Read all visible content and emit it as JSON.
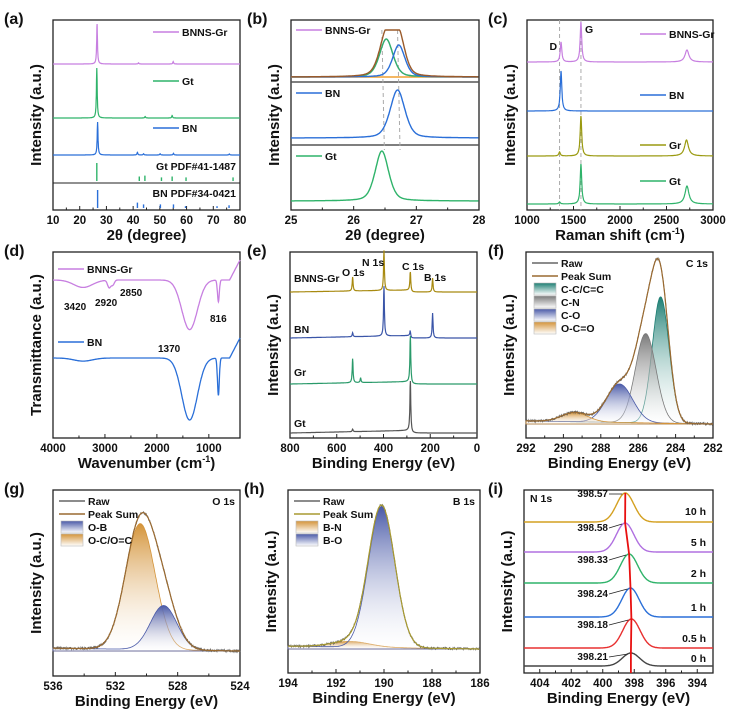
{
  "chart_data": [
    {
      "panel": "(a)",
      "type": "line",
      "xlabel": "2θ (degree)",
      "ylabel": "Intensity (a.u.)",
      "xlim": [
        10,
        80
      ],
      "xticks": [
        10,
        20,
        30,
        40,
        50,
        60,
        70,
        80
      ],
      "series": [
        {
          "name": "BNNS-Gr",
          "color": "#c77fe0",
          "peaks": [
            [
              26.5,
              1.0
            ],
            [
              42,
              0.03
            ],
            [
              55,
              0.06
            ]
          ]
        },
        {
          "name": "Gt",
          "color": "#2fb36a",
          "peaks": [
            [
              26.4,
              1.0
            ],
            [
              44.5,
              0.03
            ],
            [
              54.6,
              0.05
            ]
          ]
        },
        {
          "name": "BN",
          "color": "#2a6fd8",
          "peaks": [
            [
              26.7,
              1.0
            ],
            [
              41.6,
              0.08
            ],
            [
              43.9,
              0.04
            ],
            [
              50.1,
              0.04
            ],
            [
              55.1,
              0.05
            ],
            [
              76,
              0.03
            ]
          ]
        }
      ],
      "references": [
        {
          "name": "Gt PDF#41-1487",
          "color": "#2fb36a",
          "lines": [
            [
              26.4,
              1.0
            ],
            [
              42.3,
              0.25
            ],
            [
              44.4,
              0.3
            ],
            [
              50.6,
              0.2
            ],
            [
              54.6,
              0.25
            ],
            [
              59.8,
              0.2
            ],
            [
              77.4,
              0.2
            ]
          ]
        },
        {
          "name": "BN PDF#34-0421",
          "color": "#2a6fd8",
          "lines": [
            [
              26.7,
              1.0
            ],
            [
              41.6,
              0.3
            ],
            [
              43.9,
              0.2
            ],
            [
              50.2,
              0.2
            ],
            [
              55.1,
              0.2
            ],
            [
              59.6,
              0.1
            ],
            [
              71.4,
              0.1
            ],
            [
              75.9,
              0.15
            ]
          ]
        }
      ]
    },
    {
      "panel": "(b)",
      "type": "line",
      "xlabel": "2θ (degree)",
      "ylabel": "Intensity (a.u.)",
      "xlim": [
        25,
        28
      ],
      "xticks": [
        25,
        26,
        27,
        28
      ],
      "vlines": [
        26.45,
        26.7
      ],
      "series": [
        {
          "name": "BNNS-Gr",
          "color": "#c77fe0"
        },
        {
          "name": "BN",
          "color": "#2a6fd8",
          "peak": 26.7
        },
        {
          "name": "Gt",
          "color": "#2fb36a",
          "peak": 26.45
        }
      ],
      "fit_components": [
        {
          "color": "#2fb36a",
          "center": 26.52
        },
        {
          "color": "#2a6fd8",
          "center": 26.72
        },
        {
          "color": "#9a5a2a",
          "role": "envelope"
        },
        {
          "color": "#f0a030",
          "role": "baseline"
        }
      ]
    },
    {
      "panel": "(c)",
      "type": "line",
      "xlabel": "Raman shift (cm-1)",
      "ylabel": "Intensity (a.u.)",
      "xlim": [
        1000,
        3000
      ],
      "xticks": [
        1000,
        1500,
        2000,
        2500,
        3000
      ],
      "annotations": [
        {
          "text": "D",
          "x": 1350
        },
        {
          "text": "G",
          "x": 1580
        }
      ],
      "series": [
        {
          "name": "BNNS-Gr",
          "color": "#c77fe0",
          "peaks": [
            [
              1366,
              0.5
            ],
            [
              1580,
              1.0
            ],
            [
              2720,
              0.3
            ]
          ]
        },
        {
          "name": "BN",
          "color": "#2a6fd8",
          "peaks": [
            [
              1366,
              1.0
            ]
          ]
        },
        {
          "name": "Gr",
          "color": "#9a9a10",
          "peaks": [
            [
              1350,
              0.1
            ],
            [
              1580,
              1.0
            ],
            [
              2715,
              0.4
            ]
          ]
        },
        {
          "name": "Gt",
          "color": "#2fb36a",
          "peaks": [
            [
              1350,
              0.05
            ],
            [
              1580,
              1.0
            ],
            [
              2720,
              0.45
            ]
          ]
        }
      ]
    },
    {
      "panel": "(d)",
      "type": "line",
      "xlabel": "Wavenumber (cm-1)",
      "ylabel": "Transmittance (a.u.)",
      "xlim": [
        4000,
        400
      ],
      "xticks": [
        4000,
        3000,
        2000,
        1000
      ],
      "annotations": [
        "3420",
        "2920",
        "2850",
        "1370",
        "816"
      ],
      "series": [
        {
          "name": "BNNS-Gr",
          "color": "#c77fe0",
          "dips": [
            [
              3420,
              0.12
            ],
            [
              2920,
              0.12
            ],
            [
              2850,
              0.08
            ],
            [
              1370,
              0.8
            ],
            [
              816,
              0.35
            ]
          ]
        },
        {
          "name": "BN",
          "color": "#2a6fd8",
          "dips": [
            [
              3420,
              0.05
            ],
            [
              1370,
              1.0
            ],
            [
              816,
              0.6
            ]
          ]
        }
      ]
    },
    {
      "panel": "(e)",
      "type": "line",
      "xlabel": "Binding Energy (eV)",
      "ylabel": "Intensity (a.u.)",
      "xlim": [
        800,
        0
      ],
      "xticks": [
        800,
        600,
        400,
        200,
        0
      ],
      "annotations": [
        "O 1s",
        "N 1s",
        "C 1s",
        "B 1s"
      ],
      "series": [
        {
          "name": "BNNS-Gr",
          "color": "#a88a10",
          "peaks": [
            [
              532,
              0.35
            ],
            [
              398,
              1.0
            ],
            [
              285,
              0.5
            ],
            [
              190,
              0.35
            ]
          ]
        },
        {
          "name": "BN",
          "color": "#3a55a8",
          "peaks": [
            [
              532,
              0.08
            ],
            [
              398,
              1.0
            ],
            [
              285,
              0.12
            ],
            [
              190,
              0.5
            ]
          ]
        },
        {
          "name": "Gr",
          "color": "#2a9a6a",
          "peaks": [
            [
              532,
              0.5
            ],
            [
              498,
              0.1
            ],
            [
              285,
              1.0
            ]
          ]
        },
        {
          "name": "Gt",
          "color": "#555555",
          "peaks": [
            [
              532,
              0.05
            ],
            [
              285,
              1.0
            ]
          ]
        }
      ]
    },
    {
      "panel": "(f)",
      "type": "area",
      "tag": "C 1s",
      "xlabel": "Binding Energy (eV)",
      "ylabel": "Intensity (a.u.)",
      "xlim": [
        292,
        282
      ],
      "xticks": [
        292,
        290,
        288,
        286,
        284,
        282
      ],
      "legend": [
        "Raw",
        "Peak Sum",
        "C-C/C=C",
        "C-N",
        "C-O",
        "O-C=O"
      ],
      "components": [
        {
          "name": "C-C/C=C",
          "color": "#1e7f74",
          "center": 284.8,
          "height": 0.82,
          "width": 0.45
        },
        {
          "name": "C-N",
          "color": "#7a7a7a",
          "center": 285.6,
          "height": 0.58,
          "width": 0.55
        },
        {
          "name": "C-O",
          "color": "#4a5aa8",
          "center": 287.0,
          "height": 0.25,
          "width": 0.7
        },
        {
          "name": "O-C=O",
          "color": "#d4943a",
          "center": 289.4,
          "height": 0.06,
          "width": 0.7
        }
      ],
      "raw_color": "#666666",
      "sum_color": "#9a6a30"
    },
    {
      "panel": "(g)",
      "type": "area",
      "tag": "O 1s",
      "xlabel": "Binding Energy (eV)",
      "ylabel": "Intensity (a.u.)",
      "xlim": [
        536,
        524
      ],
      "xticks": [
        536,
        532,
        528,
        524
      ],
      "legend": [
        "Raw",
        "Peak Sum",
        "O-B",
        "O-C/O=C"
      ],
      "components": [
        {
          "name": "O-C/O=C",
          "color": "#d4943a",
          "center": 530.4,
          "height": 0.88,
          "width": 0.95
        },
        {
          "name": "O-B",
          "color": "#4a5aa8",
          "center": 528.9,
          "height": 0.31,
          "width": 0.85
        }
      ],
      "raw_color": "#666666",
      "sum_color": "#9a6a30"
    },
    {
      "panel": "(h)",
      "type": "area",
      "tag": "B 1s",
      "xlabel": "Binding Energy (eV)",
      "ylabel": "Intensity (a.u.)",
      "xlim": [
        194,
        186
      ],
      "xticks": [
        194,
        192,
        190,
        188,
        186
      ],
      "legend": [
        "Raw",
        "Peak Sum",
        "B-N",
        "B-O"
      ],
      "components": [
        {
          "name": "B-N",
          "color": "#d4943a",
          "center": 191.4,
          "height": 0.04,
          "width": 0.8
        },
        {
          "name": "B-O",
          "color": "#4a5aa8",
          "center": 190.1,
          "height": 1.0,
          "width": 0.55
        }
      ],
      "raw_color": "#666666",
      "sum_color": "#a89a30"
    },
    {
      "panel": "(i)",
      "type": "line",
      "tag": "N 1s",
      "xlabel": "Binding Energy (eV)",
      "ylabel": "Intensity (a.u.)",
      "xlim": [
        405,
        393
      ],
      "xticks": [
        404,
        402,
        400,
        398,
        396,
        394
      ],
      "series": [
        {
          "name": "10 h",
          "color": "#d4a020",
          "peak": 398.57
        },
        {
          "name": "5 h",
          "color": "#b070e0",
          "peak": 398.58
        },
        {
          "name": "2 h",
          "color": "#2fb36a",
          "peak": 398.33
        },
        {
          "name": "1 h",
          "color": "#2a6fd8",
          "peak": 398.24
        },
        {
          "name": "0.5 h",
          "color": "#e83030",
          "peak": 398.18
        },
        {
          "name": "0 h",
          "color": "#444444",
          "peak": 398.21
        }
      ],
      "labels": [
        "398.57",
        "398.58",
        "398.33",
        "398.24",
        "398.18",
        "398.21"
      ],
      "trend_color": "#e81010"
    }
  ]
}
